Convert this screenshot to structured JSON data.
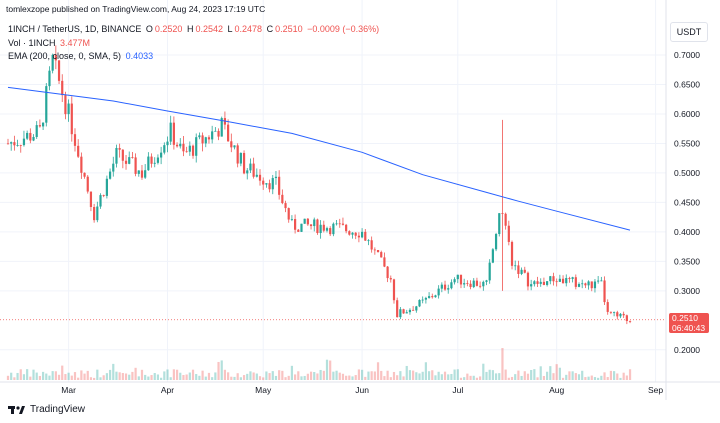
{
  "header": {
    "publisher": "tomlexzope published on TradingView.com, Aug 24, 2023 17:19 UTC",
    "symbol": "1INCH / TetherUS, 1D, BINANCE",
    "o_label": "O",
    "o_value": "0.2520",
    "h_label": "H",
    "h_value": "0.2542",
    "l_label": "L",
    "l_value": "0.2478",
    "c_label": "C",
    "c_value": "0.2510",
    "change": "−0.0009 (−0.36%)",
    "vol_label": "Vol · 1INCH",
    "vol_value": "3.477M",
    "ema_label": "EMA (200, close, 0, SMA, 5)",
    "ema_value": "0.4033"
  },
  "currency": "USDT",
  "last_price": "0.2510",
  "countdown": "06:40:43",
  "brand": "TradingView",
  "colors": {
    "up": "#26a69a",
    "down": "#ef5350",
    "ema": "#2962ff",
    "last_line": "#ef5350"
  },
  "chart_data": {
    "type": "candlestick",
    "y_ticks": [
      "0.7000",
      "0.6500",
      "0.6000",
      "0.5500",
      "0.5000",
      "0.4500",
      "0.4000",
      "0.3500",
      "0.3000",
      "0.2000"
    ],
    "x_ticks": [
      "Mar",
      "Apr",
      "May",
      "Jun",
      "Jul",
      "Aug",
      "Sep"
    ],
    "ylim": [
      0.15,
      0.73
    ],
    "last_close": 0.251,
    "ema_200": [
      {
        "date": "2023-02-10",
        "value": 0.645
      },
      {
        "date": "2023-03-15",
        "value": 0.622
      },
      {
        "date": "2023-04-01",
        "value": 0.605
      },
      {
        "date": "2023-04-20",
        "value": 0.587
      },
      {
        "date": "2023-05-10",
        "value": 0.567
      },
      {
        "date": "2023-06-01",
        "value": 0.535
      },
      {
        "date": "2023-06-20",
        "value": 0.497
      },
      {
        "date": "2023-07-10",
        "value": 0.467
      },
      {
        "date": "2023-07-20",
        "value": 0.452
      },
      {
        "date": "2023-08-01",
        "value": 0.435
      },
      {
        "date": "2023-08-24",
        "value": 0.403
      }
    ],
    "price_path": [
      {
        "date": "2023-02-10",
        "close": 0.55
      },
      {
        "date": "2023-02-20",
        "close": 0.57
      },
      {
        "date": "2023-02-24",
        "close": 0.69
      },
      {
        "date": "2023-03-01",
        "close": 0.6
      },
      {
        "date": "2023-03-09",
        "close": 0.43
      },
      {
        "date": "2023-03-16",
        "close": 0.53
      },
      {
        "date": "2023-03-24",
        "close": 0.5
      },
      {
        "date": "2023-04-02",
        "close": 0.57
      },
      {
        "date": "2023-04-06",
        "close": 0.53
      },
      {
        "date": "2023-04-18",
        "close": 0.58
      },
      {
        "date": "2023-04-25",
        "close": 0.51
      },
      {
        "date": "2023-05-05",
        "close": 0.48
      },
      {
        "date": "2023-05-10",
        "close": 0.41
      },
      {
        "date": "2023-05-20",
        "close": 0.41
      },
      {
        "date": "2023-06-01",
        "close": 0.4
      },
      {
        "date": "2023-06-10",
        "close": 0.32
      },
      {
        "date": "2023-06-12",
        "close": 0.26
      },
      {
        "date": "2023-06-20",
        "close": 0.28
      },
      {
        "date": "2023-06-30",
        "close": 0.32
      },
      {
        "date": "2023-07-10",
        "close": 0.31
      },
      {
        "date": "2023-07-13",
        "close": 0.4
      },
      {
        "date": "2023-07-15",
        "close": 0.44
      },
      {
        "date": "2023-07-18",
        "close": 0.35
      },
      {
        "date": "2023-07-24",
        "close": 0.31
      },
      {
        "date": "2023-08-01",
        "close": 0.32
      },
      {
        "date": "2023-08-10",
        "close": 0.31
      },
      {
        "date": "2023-08-15",
        "close": 0.31
      },
      {
        "date": "2023-08-17",
        "close": 0.26
      },
      {
        "date": "2023-08-24",
        "close": 0.251
      }
    ],
    "spikes": [
      {
        "date": "2023-07-15",
        "high": 0.59,
        "low": 0.3
      }
    ]
  }
}
